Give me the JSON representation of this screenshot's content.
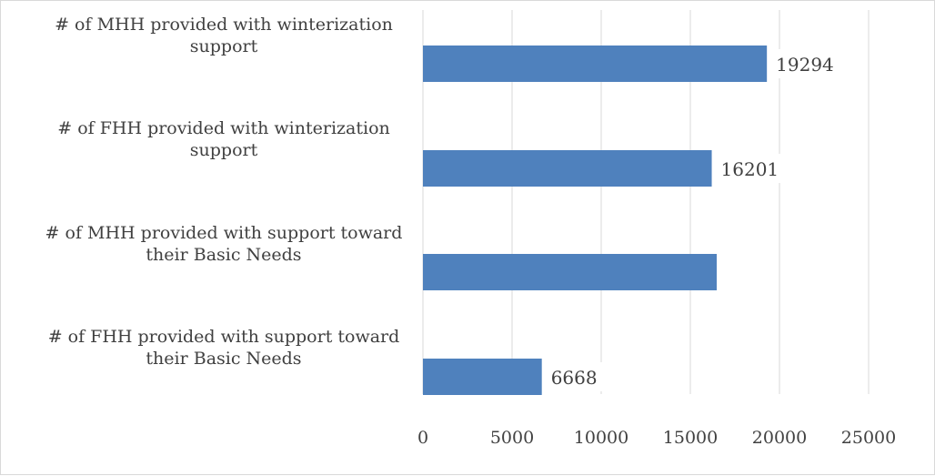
{
  "chart_data": {
    "type": "bar",
    "orientation": "horizontal",
    "categories": [
      "# of MHH provided with winterization support",
      "# of FHH provided with winterization support",
      "# of MHH provided with support toward their Basic Needs",
      "# of FHH provided with support  toward their Basic Needs"
    ],
    "category_lines": [
      [
        "# of MHH provided with winterization",
        "support"
      ],
      [
        "# of FHH provided with winterization",
        "support"
      ],
      [
        "# of MHH provided with support toward",
        "their Basic Needs"
      ],
      [
        "# of FHH provided with support  toward",
        "their Basic Needs"
      ]
    ],
    "values": [
      19294,
      16201,
      16480,
      6668
    ],
    "data_labels": [
      "19294",
      "16201",
      "",
      "6668"
    ],
    "xlim": [
      0,
      25000
    ],
    "x_ticks": [
      0,
      5000,
      10000,
      15000,
      20000,
      25000
    ],
    "x_tick_labels": [
      "0",
      "5000",
      "10000",
      "15000",
      "20000",
      "25000"
    ],
    "grid": true,
    "legend": "none",
    "colors": {
      "bar": "#4f81bd",
      "grid": "#d9d9d9",
      "text": "#404040",
      "frame": "#d9d9d9"
    }
  }
}
